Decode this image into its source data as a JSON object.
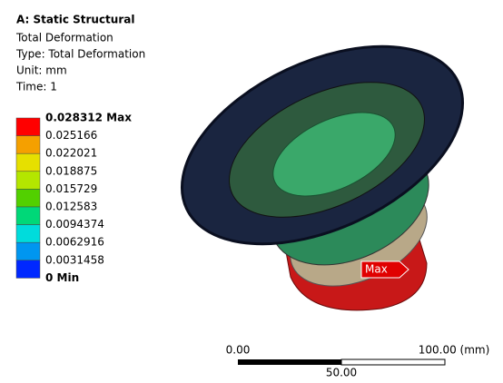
{
  "header": {
    "title": "A: Static Structural",
    "lines": [
      "Total Deformation",
      "Type: Total Deformation",
      "Unit: mm",
      "Time: 1"
    ]
  },
  "legend": {
    "labels": [
      "0.028312 Max",
      "0.025166",
      "0.022021",
      "0.018875",
      "0.015729",
      "0.012583",
      "0.0094374",
      "0.0062916",
      "0.0031458",
      "0 Min"
    ],
    "colors": [
      "#ff0000",
      "#f5a000",
      "#e6e000",
      "#b4e600",
      "#52d000",
      "#00d878",
      "#00dcdc",
      "#0096f0",
      "#0028ff"
    ]
  },
  "probe": {
    "label": "Max"
  },
  "scale_bar": {
    "left": "0.00",
    "right": "100.00 (mm)",
    "middle": "50.00"
  }
}
